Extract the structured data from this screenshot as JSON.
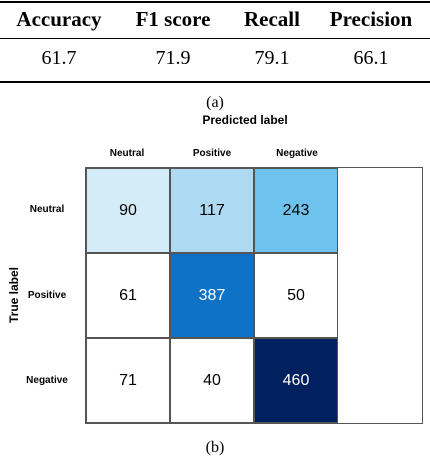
{
  "metrics_table": {
    "headers": [
      "Accuracy",
      "F1 score",
      "Recall",
      "Precision"
    ],
    "values": [
      "61.7",
      "71.9",
      "79.1",
      "66.1"
    ]
  },
  "caption_a": "(a)",
  "caption_b": "(b)",
  "confusion_matrix": {
    "x_title": "Predicted label",
    "y_title": "True label",
    "columns": [
      "Neutral",
      "Positive",
      "Negative"
    ],
    "rows": [
      "Neutral",
      "Positive",
      "Negative"
    ],
    "cells": [
      [
        {
          "value": "90",
          "bg": "#d4ecf8",
          "fg": "#000000"
        },
        {
          "value": "117",
          "bg": "#aed9f2",
          "fg": "#000000"
        },
        {
          "value": "243",
          "bg": "#6ec3ee",
          "fg": "#000000"
        }
      ],
      [
        {
          "value": "61",
          "bg": "#ffffff",
          "fg": "#000000"
        },
        {
          "value": "387",
          "bg": "#0e72c6",
          "fg": "#ffffff"
        },
        {
          "value": "50",
          "bg": "#ffffff",
          "fg": "#000000"
        }
      ],
      [
        {
          "value": "71",
          "bg": "#ffffff",
          "fg": "#000000"
        },
        {
          "value": "40",
          "bg": "#ffffff",
          "fg": "#000000"
        },
        {
          "value": "460",
          "bg": "#002060",
          "fg": "#ffffff"
        }
      ]
    ]
  }
}
